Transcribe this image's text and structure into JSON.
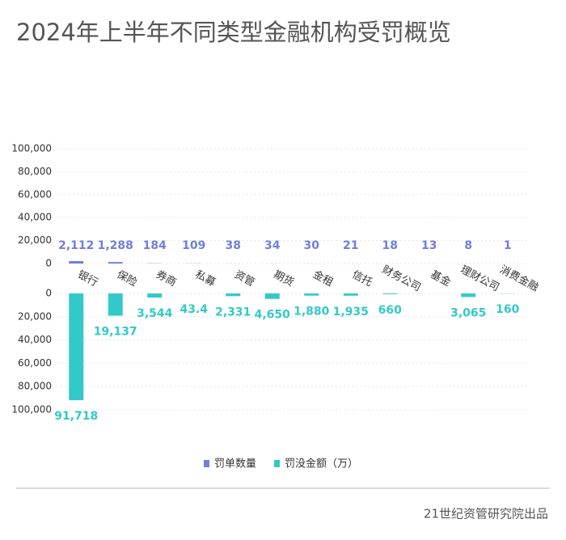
{
  "title": "2024年上半年不同类型金融机构受罚概览",
  "footer": "21世纪资管研究院出品",
  "chart_data": [
    {
      "type": "bar",
      "categories": [
        "银行",
        "保险",
        "券商",
        "私募",
        "资管",
        "期货",
        "金租",
        "信托",
        "财务公司",
        "基金",
        "理财公司",
        "消费金融"
      ],
      "series": [
        {
          "name": "罚单数量",
          "color": "#6f7fd8",
          "values": [
            2112,
            1288,
            184,
            109,
            38,
            34,
            30,
            21,
            18,
            13,
            8,
            1
          ],
          "value_labels": [
            "2,112",
            "1,288",
            "184",
            "109",
            "38",
            "34",
            "30",
            "21",
            "18",
            "13",
            "8",
            "1"
          ]
        }
      ],
      "ylim": [
        0,
        100000
      ],
      "yticks": [
        0,
        {
          "value": 20000,
          "label": "20,000"
        },
        {
          "value": 40000,
          "label": "40,000"
        },
        {
          "value": 60000,
          "label": "60,000"
        },
        {
          "value": 80000,
          "label": "80,000"
        },
        {
          "value": 100000,
          "label": "100,000"
        }
      ],
      "grid": true
    },
    {
      "type": "bar",
      "inverted": true,
      "series": [
        {
          "name": "罚没金额（万）",
          "color": "#33c9c9",
          "values": [
            91718,
            19137,
            3544,
            43.4,
            2331,
            4650,
            1880,
            1935,
            660,
            null,
            3065,
            160
          ],
          "value_labels": [
            "91,718",
            "19,137",
            "3,544",
            "43.4",
            "2,331",
            "4,650",
            "1,880",
            "1,935",
            "660",
            null,
            "3,065",
            "160"
          ]
        }
      ],
      "ylim": [
        0,
        100000
      ],
      "yticks": [
        0,
        {
          "value": 20000,
          "label": "20,000"
        },
        {
          "value": 40000,
          "label": "40,000"
        },
        {
          "value": 60000,
          "label": "60,000"
        },
        {
          "value": 80000,
          "label": "80,000"
        },
        {
          "value": 100000,
          "label": "100,000"
        }
      ],
      "grid": true
    }
  ]
}
